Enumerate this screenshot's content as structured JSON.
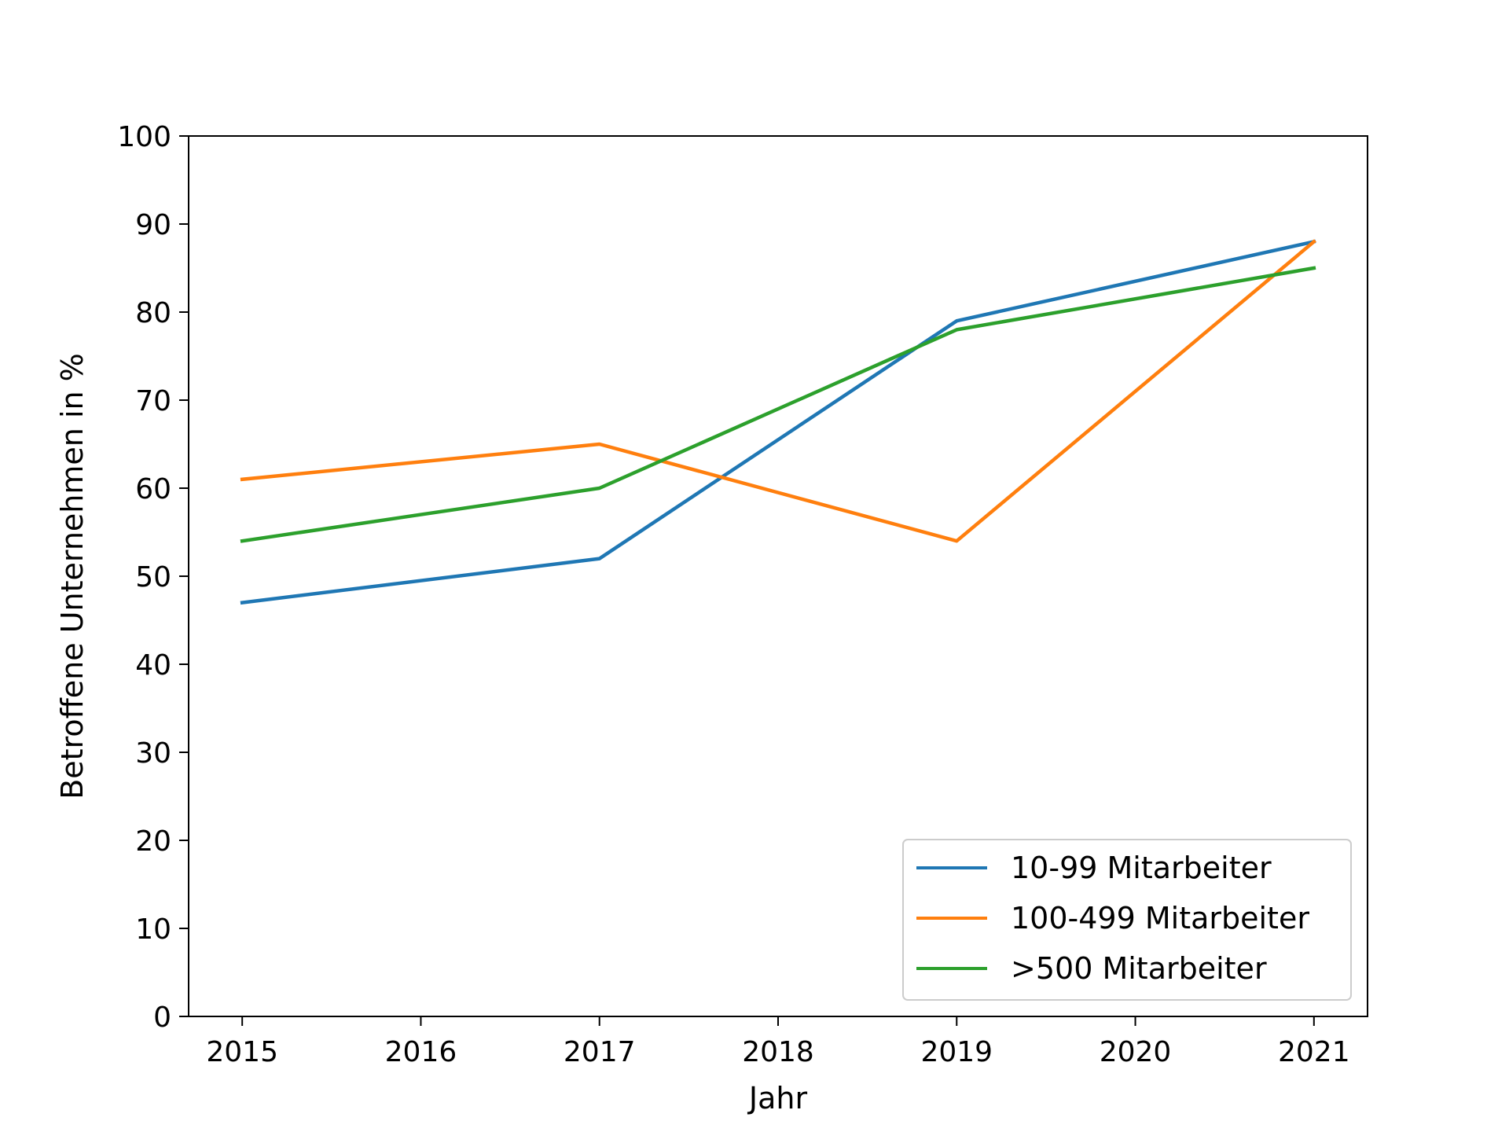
{
  "chart_data": {
    "type": "line",
    "title": "",
    "xlabel": "Jahr",
    "ylabel": "Betroffene Unternehmen in %",
    "x": [
      2015,
      2017,
      2019,
      2021
    ],
    "x_ticks": [
      "2015",
      "2016",
      "2017",
      "2018",
      "2019",
      "2020",
      "2021"
    ],
    "y_ticks": [
      "0",
      "10",
      "20",
      "30",
      "40",
      "50",
      "60",
      "70",
      "80",
      "90",
      "100"
    ],
    "xlim": [
      2014.7,
      2021.3
    ],
    "ylim": [
      0,
      100
    ],
    "grid": false,
    "legend_position": "lower-right",
    "series": [
      {
        "name": "10-99 Mitarbeiter",
        "color": "#1f77b4",
        "values": [
          47,
          52,
          79,
          88
        ]
      },
      {
        "name": "100-499 Mitarbeiter",
        "color": "#ff7f0e",
        "values": [
          61,
          65,
          54,
          88
        ]
      },
      {
        "name": ">500 Mitarbeiter",
        "color": "#2ca02c",
        "values": [
          54,
          60,
          78,
          85
        ]
      }
    ]
  }
}
